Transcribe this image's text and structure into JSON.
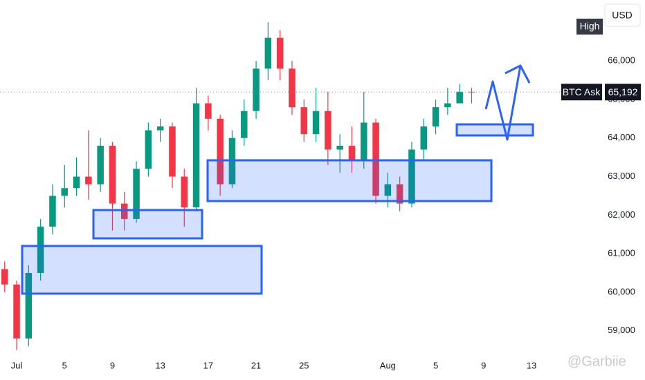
{
  "chart_data": {
    "type": "candlestick",
    "currency": "USD",
    "high_label": "High",
    "ask_label": "BTC Ask",
    "last_price": {
      "value": 65192,
      "label": "65,192"
    },
    "watermark": "@Garbiie",
    "up_color": "#089981",
    "down_color": "#f23645",
    "x": [
      -1,
      0,
      1,
      2,
      3,
      4,
      5,
      6,
      7,
      8,
      9,
      10,
      11,
      12,
      13,
      14,
      15,
      16,
      17,
      18,
      19,
      20,
      21,
      22,
      23,
      24,
      25,
      26,
      27,
      28,
      29,
      30,
      31,
      32,
      33,
      34,
      35,
      36,
      37,
      38
    ],
    "open": [
      60600,
      60200,
      58800,
      60500,
      61700,
      62500,
      62700,
      63000,
      62800,
      63800,
      62300,
      61900,
      63200,
      64200,
      64300,
      63000,
      62200,
      64900,
      64500,
      62800,
      64000,
      64700,
      65800,
      66600,
      65800,
      64800,
      64100,
      64700,
      63700,
      63800,
      63400,
      64400,
      62500,
      62800,
      62300,
      63700,
      64300,
      64800,
      64900,
      65200
    ],
    "high": [
      60800,
      60300,
      60700,
      61900,
      62800,
      63300,
      63500,
      64200,
      64000,
      63900,
      62600,
      63400,
      64400,
      64500,
      64400,
      63200,
      65300,
      65100,
      64600,
      64200,
      65000,
      66000,
      67000,
      66800,
      66000,
      65000,
      65300,
      65200,
      64100,
      64300,
      65200,
      64500,
      63100,
      63000,
      63900,
      64500,
      65000,
      65300,
      65400,
      65300
    ],
    "low": [
      60000,
      58500,
      58600,
      60300,
      61500,
      62200,
      62500,
      62400,
      62600,
      61600,
      61600,
      61800,
      63000,
      63900,
      62700,
      61700,
      62100,
      64200,
      62500,
      62700,
      63800,
      64500,
      65500,
      65500,
      64600,
      63900,
      63900,
      63300,
      63100,
      63100,
      63200,
      62300,
      62200,
      62100,
      62200,
      63400,
      64100,
      64600,
      64900,
      64900
    ],
    "close": [
      60200,
      58800,
      60500,
      61700,
      62500,
      62700,
      63000,
      62800,
      63800,
      62300,
      61900,
      63200,
      64200,
      64300,
      63000,
      62200,
      64900,
      64500,
      62800,
      64000,
      64700,
      65800,
      66600,
      65800,
      64800,
      64100,
      64700,
      63700,
      63800,
      63400,
      64400,
      62500,
      62800,
      62300,
      63700,
      64300,
      64800,
      64900,
      65200,
      65192
    ],
    "xlim": [
      -1.39,
      45.43
    ],
    "xticks": [
      {
        "value": 0,
        "label": "Jul"
      },
      {
        "value": 4,
        "label": "5"
      },
      {
        "value": 8,
        "label": "9"
      },
      {
        "value": 12,
        "label": "13"
      },
      {
        "value": 16,
        "label": "17"
      },
      {
        "value": 20,
        "label": "21"
      },
      {
        "value": 24,
        "label": "25"
      },
      {
        "value": 31,
        "label": "Aug"
      },
      {
        "value": 35,
        "label": "5"
      },
      {
        "value": 39,
        "label": "9"
      },
      {
        "value": 43,
        "label": "13"
      }
    ],
    "ylim": [
      58350,
      67580
    ],
    "yticks": [
      {
        "value": 59000,
        "label": "59,000"
      },
      {
        "value": 60000,
        "label": "60,000"
      },
      {
        "value": 61000,
        "label": "61,000"
      },
      {
        "value": 62000,
        "label": "62,000"
      },
      {
        "value": 63000,
        "label": "63,000"
      },
      {
        "value": 64000,
        "label": "64,000"
      },
      {
        "value": 65000,
        "label": "65,000"
      },
      {
        "value": 66000,
        "label": "66,000"
      }
    ]
  }
}
